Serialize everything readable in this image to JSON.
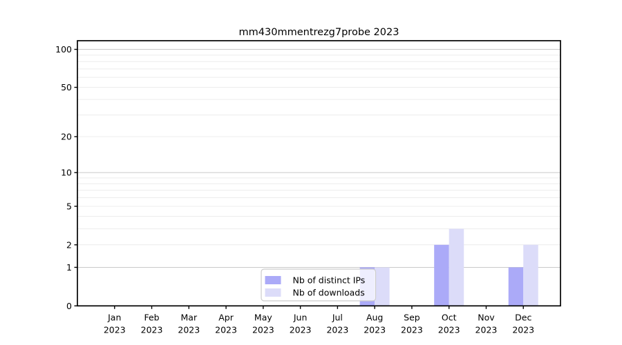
{
  "chart_data": {
    "type": "bar",
    "title": "mm430mmentrezg7probe 2023",
    "x_month_labels": [
      "Jan",
      "Feb",
      "Mar",
      "Apr",
      "May",
      "Jun",
      "Jul",
      "Aug",
      "Sep",
      "Oct",
      "Nov",
      "Dec"
    ],
    "x_year": "2023",
    "series": [
      {
        "name": "Nb of distinct IPs",
        "color": "#abaaf8",
        "values": [
          0,
          0,
          0,
          0,
          0,
          0,
          0,
          1,
          0,
          2,
          0,
          1
        ]
      },
      {
        "name": "Nb of downloads",
        "color": "#dcdcf9",
        "values": [
          0,
          0,
          0,
          0,
          0,
          0,
          0,
          1,
          0,
          3,
          0,
          2
        ]
      }
    ],
    "y_scale": "log1p",
    "y_ticks": [
      0,
      1,
      2,
      5,
      10,
      20,
      50,
      100
    ],
    "y_grid_major": [
      1,
      10,
      100
    ],
    "y_grid_minor": [
      2,
      3,
      4,
      5,
      6,
      7,
      8,
      9,
      20,
      30,
      40,
      50,
      60,
      70,
      80,
      90
    ],
    "y_max": 117,
    "ylim": [
      0,
      117
    ],
    "grid": "on",
    "legend_position": "lower center",
    "colors": {
      "grid_major": "#c9c9c9",
      "grid_minor": "#ececec",
      "spine": "#000000",
      "tick_label": "#000000",
      "legend_border": "#cccccc",
      "legend_bg": "rgba(255,255,255,0.8)"
    }
  }
}
